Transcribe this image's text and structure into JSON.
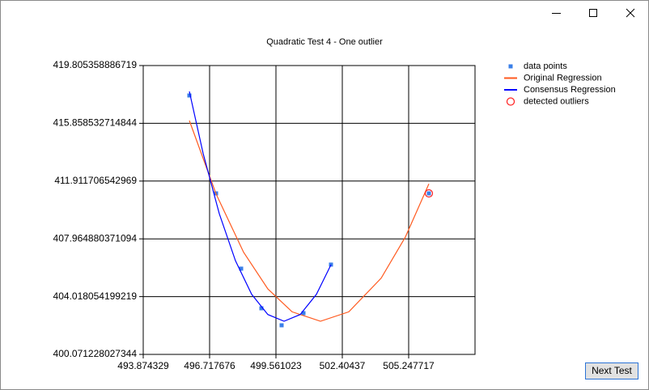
{
  "chart_data": {
    "type": "line",
    "title": "Quadratic Test 4 - One outlier",
    "xlim": [
      493.874329,
      508.091064
    ],
    "xticks": [
      493.874329,
      496.717676,
      499.561023,
      502.40437,
      505.247717
    ],
    "ylim": [
      400.071228027344,
      419.805358886719
    ],
    "yticks": [
      400.071228027344,
      404.018054199219,
      407.964880371094,
      411.911706542969,
      415.858532714844,
      419.805358886719
    ],
    "grid": true,
    "legend": "right",
    "series": [
      {
        "name": "data points",
        "type": "scatter",
        "marker": "square",
        "color": "#3a7fe8",
        "x": [
          495.851,
          496.995,
          498.07,
          498.937,
          499.804,
          500.74,
          501.919,
          506.114
        ],
        "values": [
          417.76,
          411.071,
          405.93,
          403.222,
          402.061,
          402.89,
          406.207,
          411.071
        ]
      },
      {
        "name": "Original Regression",
        "type": "line",
        "color": "#ff5a1f",
        "x": [
          495.851,
          496.995,
          498.174,
          499.214,
          500.254,
          501.468,
          502.682,
          504.069,
          505.109,
          506.114
        ],
        "values": [
          416.046,
          411.033,
          407.053,
          404.543,
          402.979,
          402.337,
          402.979,
          405.278,
          408.098,
          411.718
        ]
      },
      {
        "name": "Consensus Regression",
        "type": "line",
        "color": "#0000ff",
        "x": [
          495.851,
          496.44,
          497.134,
          497.827,
          498.521,
          499.214,
          499.908,
          500.601,
          501.295,
          501.919
        ],
        "values": [
          418.036,
          413.807,
          409.678,
          406.467,
          404.173,
          402.796,
          402.337,
          402.796,
          404.173,
          406.195
        ]
      },
      {
        "name": "detected outliers",
        "type": "scatter",
        "marker": "circle",
        "color": "#ff2020",
        "x": [
          506.114
        ],
        "values": [
          411.071
        ]
      }
    ]
  },
  "button": "Next Test"
}
